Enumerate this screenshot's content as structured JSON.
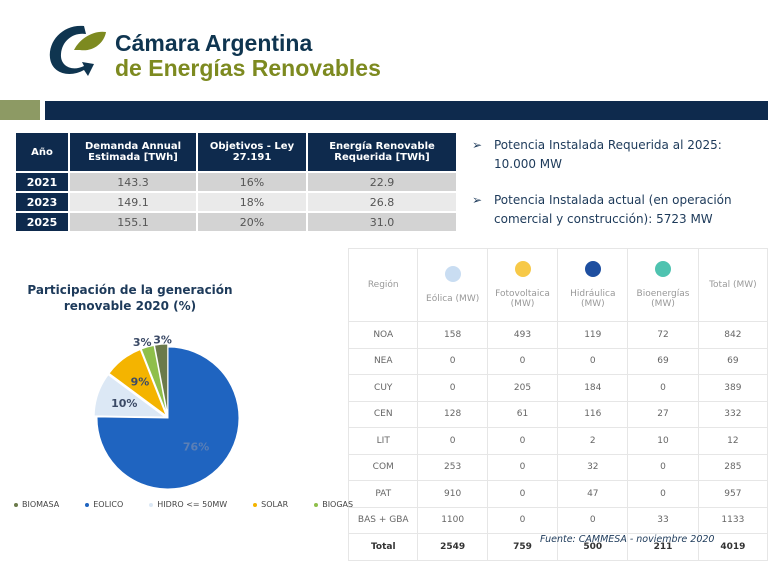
{
  "header": {
    "logo_line1": "Cámara Argentina",
    "logo_line2": "de Energías Renovables",
    "colors": {
      "navy": "#0e2a4d",
      "olive": "#8d9a64"
    }
  },
  "demand_table": {
    "headers": [
      "Año",
      "Demanda Annual Estimada [TWh]",
      "Objetivos - Ley 27.191",
      "Energía Renovable Requerida [TWh]"
    ],
    "rows": [
      [
        "2021",
        "143.3",
        "16%",
        "22.9"
      ],
      [
        "2023",
        "149.1",
        "18%",
        "26.8"
      ],
      [
        "2025",
        "155.1",
        "20%",
        "31.0"
      ]
    ]
  },
  "bullets": [
    "Potencia Instalada Requerida al 2025: 10.000 MW",
    "Potencia Instalada actual (en operación comercial y construcción): 5723 MW"
  ],
  "capacity_table": {
    "headers": [
      {
        "label": "Región"
      },
      {
        "label": "Eólica (MW)",
        "icon": "wind-icon",
        "color": "#c9ddf2"
      },
      {
        "label": "Fotovoltaica (MW)",
        "icon": "sun-icon",
        "color": "#f7c948"
      },
      {
        "label": "Hidráulica (MW)",
        "icon": "water-icon",
        "color": "#1e4fa0"
      },
      {
        "label": "Bioenergías (MW)",
        "icon": "leaf-icon",
        "color": "#4fc3b0"
      },
      {
        "label": "Total (MW)"
      }
    ],
    "rows": [
      [
        "NOA",
        "158",
        "493",
        "119",
        "72",
        "842"
      ],
      [
        "NEA",
        "0",
        "0",
        "0",
        "69",
        "69"
      ],
      [
        "CUY",
        "0",
        "205",
        "184",
        "0",
        "389"
      ],
      [
        "CEN",
        "128",
        "61",
        "116",
        "27",
        "332"
      ],
      [
        "LIT",
        "0",
        "0",
        "2",
        "10",
        "12"
      ],
      [
        "COM",
        "253",
        "0",
        "32",
        "0",
        "285"
      ],
      [
        "PAT",
        "910",
        "0",
        "47",
        "0",
        "957"
      ],
      [
        "BAS + GBA",
        "1100",
        "0",
        "0",
        "33",
        "1133"
      ]
    ],
    "total": [
      "Total",
      "2549",
      "759",
      "500",
      "211",
      "4019"
    ]
  },
  "source": "Fuente: CAMMESA - noviembre 2020",
  "chart_data": {
    "type": "pie",
    "title": "Participación de la generación renovable 2020 (%)",
    "categories": [
      "BIOMASA",
      "EOLICO",
      "HIDRO <= 50MW",
      "SOLAR",
      "BIOGAS"
    ],
    "values": [
      3,
      76,
      10,
      9,
      3
    ],
    "labels": [
      "3%",
      "76%",
      "10%",
      "9%",
      "3%"
    ],
    "colors": [
      "#6b7a4a",
      "#1f64c0",
      "#dce8f5",
      "#f4b400",
      "#8fbf4a"
    ],
    "legend": "bottom"
  }
}
